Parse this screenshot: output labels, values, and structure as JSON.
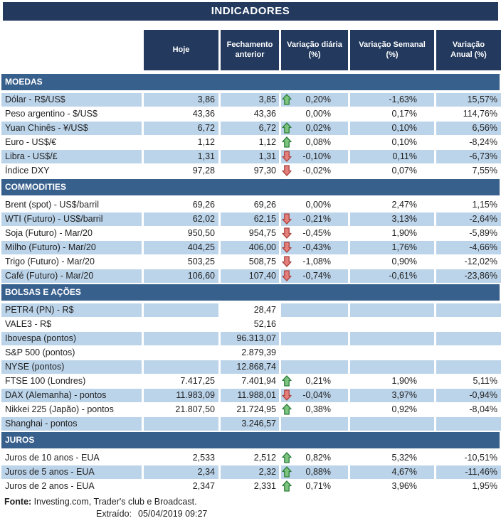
{
  "title": "INDICADORES",
  "columns": [
    {
      "line1": "Hoje",
      "line2": ""
    },
    {
      "line1": "Fechamento",
      "line2": "anterior"
    },
    {
      "line1": "Variação diária",
      "line2": "(%)"
    },
    {
      "line1": "Variação Semanal",
      "line2": "(%)"
    },
    {
      "line1": "Variação",
      "line2": "Anual (%)"
    }
  ],
  "colors": {
    "header_navy": "#233A5E",
    "section_blue": "#38608D",
    "row_stripe": "#BCD4EA",
    "arrow_up_fill": "#7DC47E",
    "arrow_up_border": "#2E7D3E",
    "arrow_down_fill": "#E57F7B",
    "arrow_down_border": "#AA4441"
  },
  "sections": [
    {
      "name": "MOEDAS",
      "first_row_shaded": true,
      "rows": [
        {
          "label": "Dólar - R$/US$",
          "hoje": "3,86",
          "fechamento": "3,85",
          "arrow": "up",
          "var_diaria": "0,20%",
          "var_semanal": "-1,63%",
          "var_anual": "15,57%"
        },
        {
          "label": "Peso argentino - $/US$",
          "hoje": "43,36",
          "fechamento": "43,36",
          "arrow": "",
          "var_diaria": "0,00%",
          "var_semanal": "0,17%",
          "var_anual": "114,76%"
        },
        {
          "label": "Yuan Chinês - ¥/US$",
          "hoje": "6,72",
          "fechamento": "6,72",
          "arrow": "up",
          "var_diaria": "0,02%",
          "var_semanal": "0,10%",
          "var_anual": "6,56%"
        },
        {
          "label": "Euro - US$/€",
          "hoje": "1,12",
          "fechamento": "1,12",
          "arrow": "up",
          "var_diaria": "0,08%",
          "var_semanal": "0,10%",
          "var_anual": "-8,24%"
        },
        {
          "label": "Libra - US$/£",
          "hoje": "1,31",
          "fechamento": "1,31",
          "arrow": "down",
          "var_diaria": "-0,10%",
          "var_semanal": "0,11%",
          "var_anual": "-6,73%"
        },
        {
          "label": "Índice DXY",
          "hoje": "97,28",
          "fechamento": "97,30",
          "arrow": "down",
          "var_diaria": "-0,02%",
          "var_semanal": "0,07%",
          "var_anual": "7,55%"
        }
      ]
    },
    {
      "name": "COMMODITIES",
      "first_row_shaded": false,
      "rows": [
        {
          "label": "Brent (spot) - US$/barril",
          "hoje": "69,26",
          "fechamento": "69,26",
          "arrow": "",
          "var_diaria": "0,00%",
          "var_semanal": "2,47%",
          "var_anual": "1,15%"
        },
        {
          "label": "WTI (Futuro) - US$/barril",
          "hoje": "62,02",
          "fechamento": "62,15",
          "arrow": "down",
          "var_diaria": "-0,21%",
          "var_semanal": "3,13%",
          "var_anual": "-2,64%"
        },
        {
          "label": "Soja (Futuro) - Mar/20",
          "hoje": "950,50",
          "fechamento": "954,75",
          "arrow": "down",
          "var_diaria": "-0,45%",
          "var_semanal": "1,90%",
          "var_anual": "-5,89%"
        },
        {
          "label": "Milho (Futuro) - Mar/20",
          "hoje": "404,25",
          "fechamento": "406,00",
          "arrow": "down",
          "var_diaria": "-0,43%",
          "var_semanal": "1,76%",
          "var_anual": "-4,66%"
        },
        {
          "label": "Trigo (Futuro) - Mar/20",
          "hoje": "503,25",
          "fechamento": "508,75",
          "arrow": "down",
          "var_diaria": "-1,08%",
          "var_semanal": "0,90%",
          "var_anual": "-12,02%"
        },
        {
          "label": "Café (Futuro) - Mar/20",
          "hoje": "106,60",
          "fechamento": "107,40",
          "arrow": "down",
          "var_diaria": "-0,74%",
          "var_semanal": "-0,61%",
          "var_anual": "-23,86%"
        }
      ]
    },
    {
      "name": "BOLSAS E AÇÕES",
      "first_row_shaded": true,
      "rows": [
        {
          "label": "PETR4 (PN) - R$",
          "hoje": "",
          "fechamento": "28,47",
          "arrow": "",
          "var_diaria": "",
          "var_semanal": "",
          "var_anual": "",
          "fechamento_unshaded": true
        },
        {
          "label": "VALE3 - R$",
          "hoje": "",
          "fechamento": "52,16",
          "arrow": "",
          "var_diaria": "",
          "var_semanal": "",
          "var_anual": ""
        },
        {
          "label": "Ibovespa (pontos)",
          "hoje": "",
          "fechamento": "96.313,07",
          "arrow": "",
          "var_diaria": "",
          "var_semanal": "",
          "var_anual": ""
        },
        {
          "label": "S&P 500 (pontos)",
          "hoje": "",
          "fechamento": "2.879,39",
          "arrow": "",
          "var_diaria": "",
          "var_semanal": "",
          "var_anual": ""
        },
        {
          "label": "NYSE (pontos)",
          "hoje": "",
          "fechamento": "12.868,74",
          "arrow": "",
          "var_diaria": "",
          "var_semanal": "",
          "var_anual": ""
        },
        {
          "label": "FTSE 100 (Londres)",
          "hoje": "7.417,25",
          "fechamento": "7.401,94",
          "arrow": "up",
          "var_diaria": "0,21%",
          "var_semanal": "1,90%",
          "var_anual": "5,11%"
        },
        {
          "label": "DAX (Alemanha) - pontos",
          "hoje": "11.983,09",
          "fechamento": "11.988,01",
          "arrow": "down",
          "var_diaria": "-0,04%",
          "var_semanal": "3,97%",
          "var_anual": "-0,94%"
        },
        {
          "label": "Nikkei 225 (Japão) - pontos",
          "hoje": "21.807,50",
          "fechamento": "21.724,95",
          "arrow": "up",
          "var_diaria": "0,38%",
          "var_semanal": "0,92%",
          "var_anual": "-8,04%"
        },
        {
          "label": "Shanghai - pontos",
          "hoje": "",
          "fechamento": "3.246,57",
          "arrow": "",
          "var_diaria": "",
          "var_semanal": "",
          "var_anual": ""
        }
      ]
    },
    {
      "name": "JUROS",
      "first_row_shaded": false,
      "rows": [
        {
          "label": "Juros de 10 anos - EUA",
          "hoje": "2,533",
          "fechamento": "2,512",
          "arrow": "up",
          "var_diaria": "0,82%",
          "var_semanal": "5,32%",
          "var_anual": "-10,51%"
        },
        {
          "label": "Juros de 5 anos - EUA",
          "hoje": "2,34",
          "fechamento": "2,32",
          "arrow": "up",
          "var_diaria": "0,88%",
          "var_semanal": "4,67%",
          "var_anual": "-11,46%"
        },
        {
          "label": "Juros de 2 anos - EUA",
          "hoje": "2,347",
          "fechamento": "2,331",
          "arrow": "up",
          "var_diaria": "0,71%",
          "var_semanal": "3,96%",
          "var_anual": "1,95%"
        }
      ]
    }
  ],
  "footer": {
    "fonte_label": "Fonte:",
    "fonte_text": " Investing.com, Trader's club e Broadcast.",
    "extraido_label": "Extraído:",
    "extraido_value": "05/04/2019 09:27"
  }
}
